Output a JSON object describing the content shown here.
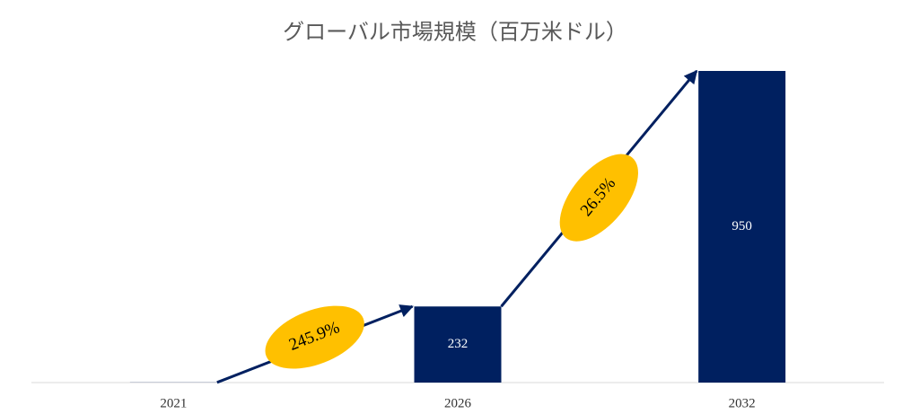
{
  "chart_data": {
    "type": "bar",
    "title": "グローバル市場規模（百万米ドル）",
    "categories": [
      "2021",
      "2026",
      "2032"
    ],
    "values": [
      0.47,
      232,
      950
    ],
    "color": "#002060",
    "ylim": [
      0,
      950
    ],
    "annotations": [
      "245.9%",
      "26.5%"
    ],
    "annotation_color": "#FFC000"
  }
}
